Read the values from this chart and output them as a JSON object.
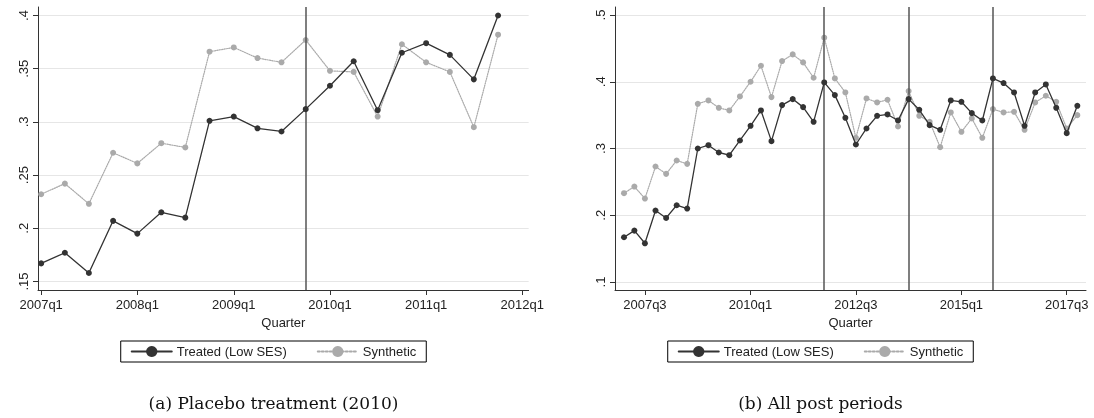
{
  "chart_data": [
    {
      "type": "line",
      "annotations": [
        "(a) Placebo treatment (2010)"
      ],
      "xlabel": "Quarter",
      "x": [
        "2007-01",
        "2007-04",
        "2007-07",
        "2007-10",
        "2008-01",
        "2008-04",
        "2008-07",
        "2008-10",
        "2009-01",
        "2009-04",
        "2009-07",
        "2009-10",
        "2010-01",
        "2010-04",
        "2010-07",
        "2010-10",
        "2011-01",
        "2011-04",
        "2011-07",
        "2011-10"
      ],
      "series": [
        {
          "name": "Treated (Low SES)",
          "color": "#333333",
          "line_style": "solid",
          "values": [
            0.167,
            0.177,
            0.158,
            0.207,
            0.195,
            0.215,
            0.21,
            0.301,
            0.305,
            0.294,
            0.291,
            0.312,
            0.334,
            0.357,
            0.311,
            0.365,
            0.374,
            0.363,
            0.34,
            0.4
          ]
        },
        {
          "name": "Synthetic",
          "color": "#aaaaaa",
          "line_style": "dotted",
          "values": [
            0.232,
            0.242,
            0.223,
            0.271,
            0.261,
            0.28,
            0.276,
            0.366,
            0.37,
            0.36,
            0.356,
            0.377,
            0.348,
            0.347,
            0.305,
            0.373,
            0.356,
            0.347,
            0.295,
            0.382
          ]
        }
      ],
      "xlim": [
        "2006-12-20",
        "2012-01-25"
      ],
      "xticks": [
        {
          "value": "2007-01",
          "label": "2007q1"
        },
        {
          "value": "2008-01",
          "label": "2008q1"
        },
        {
          "value": "2009-01",
          "label": "2009q1"
        },
        {
          "value": "2010-01",
          "label": "2010q1"
        },
        {
          "value": "2011-01",
          "label": "2011q1"
        },
        {
          "value": "2012-01",
          "label": "2012q1"
        }
      ],
      "ylim": [
        0.142,
        0.408
      ],
      "yticks": [
        {
          "value": 0.15,
          "label": ".15"
        },
        {
          "value": 0.2,
          "label": ".2"
        },
        {
          "value": 0.25,
          "label": ".25"
        },
        {
          "value": 0.3,
          "label": ".3"
        },
        {
          "value": 0.35,
          "label": ".35"
        },
        {
          "value": 0.4,
          "label": ".4"
        }
      ],
      "ref_lines": [
        {
          "axis": "x",
          "value": "2009-10",
          "color": "#555555"
        }
      ],
      "grid": "y",
      "legend": "bottom",
      "marker": "circle"
    },
    {
      "type": "line",
      "annotations": [
        "(b) All post periods"
      ],
      "xlabel": "Quarter",
      "x": [
        "2007-01",
        "2007-04",
        "2007-07",
        "2007-10",
        "2008-01",
        "2008-04",
        "2008-07",
        "2008-10",
        "2009-01",
        "2009-04",
        "2009-07",
        "2009-10",
        "2010-01",
        "2010-04",
        "2010-07",
        "2010-10",
        "2011-01",
        "2011-04",
        "2011-07",
        "2011-10",
        "2012-01",
        "2012-04",
        "2012-07",
        "2012-10",
        "2013-01",
        "2013-04",
        "2013-07",
        "2013-10",
        "2014-01",
        "2014-04",
        "2014-07",
        "2014-10",
        "2015-01",
        "2015-04",
        "2015-07",
        "2015-10",
        "2016-01",
        "2016-04",
        "2016-07",
        "2016-10",
        "2017-01",
        "2017-04",
        "2017-07",
        "2017-10"
      ],
      "series": [
        {
          "name": "Treated (Low SES)",
          "color": "#333333",
          "line_style": "solid",
          "values": [
            0.167,
            0.177,
            0.158,
            0.207,
            0.196,
            0.215,
            0.21,
            0.3,
            0.305,
            0.294,
            0.29,
            0.312,
            0.334,
            0.357,
            0.311,
            0.365,
            0.374,
            0.362,
            0.34,
            0.399,
            0.38,
            0.346,
            0.306,
            0.33,
            0.349,
            0.351,
            0.342,
            0.374,
            0.358,
            0.335,
            0.328,
            0.372,
            0.37,
            0.353,
            0.342,
            0.405,
            0.398,
            0.384,
            0.334,
            0.384,
            0.396,
            0.361,
            0.323,
            0.364
          ]
        },
        {
          "name": "Synthetic",
          "color": "#aaaaaa",
          "line_style": "dotted",
          "values": [
            0.233,
            0.243,
            0.225,
            0.273,
            0.262,
            0.282,
            0.277,
            0.367,
            0.372,
            0.361,
            0.357,
            0.378,
            0.4,
            0.424,
            0.377,
            0.431,
            0.441,
            0.429,
            0.406,
            0.466,
            0.405,
            0.384,
            0.316,
            0.375,
            0.369,
            0.373,
            0.333,
            0.386,
            0.349,
            0.34,
            0.302,
            0.354,
            0.325,
            0.345,
            0.316,
            0.359,
            0.354,
            0.355,
            0.328,
            0.369,
            0.379,
            0.37,
            0.33,
            0.35
          ]
        }
      ],
      "xlim": [
        "2006-10-15",
        "2017-12-15"
      ],
      "xticks": [
        {
          "value": "2007-07",
          "label": "2007q3"
        },
        {
          "value": "2010-01",
          "label": "2010q1"
        },
        {
          "value": "2012-07",
          "label": "2012q3"
        },
        {
          "value": "2015-01",
          "label": "2015q1"
        },
        {
          "value": "2017-07",
          "label": "2017q3"
        }
      ],
      "ylim": [
        0.088,
        0.512
      ],
      "yticks": [
        {
          "value": 0.1,
          "label": ".1"
        },
        {
          "value": 0.2,
          "label": ".2"
        },
        {
          "value": 0.3,
          "label": ".3"
        },
        {
          "value": 0.4,
          "label": ".4"
        },
        {
          "value": 0.5,
          "label": ".5"
        }
      ],
      "ref_lines": [
        {
          "axis": "x",
          "value": "2011-10",
          "color": "#555555"
        },
        {
          "axis": "x",
          "value": "2013-10",
          "color": "#555555"
        },
        {
          "axis": "x",
          "value": "2015-10",
          "color": "#555555"
        }
      ],
      "grid": "y",
      "legend": "bottom",
      "marker": "circle"
    }
  ]
}
